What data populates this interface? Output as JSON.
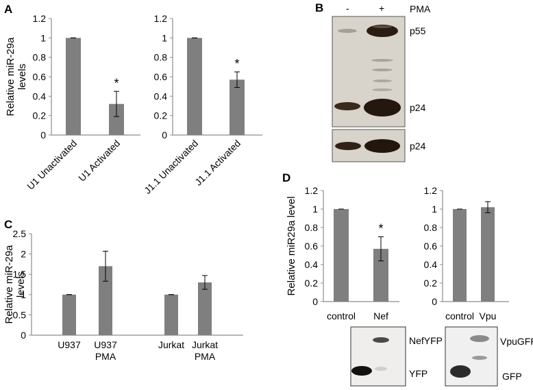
{
  "panel_letters": {
    "A": "A",
    "B": "B",
    "C": "C",
    "D": "D"
  },
  "colors": {
    "bar": "#7f7f7f",
    "axis": "#8c8c8c",
    "blot_dark": "#2b1d14",
    "blot_bg": "#d9d4cc"
  },
  "blot_b": {
    "lanes": [
      "-",
      "+"
    ],
    "treatment": "PMA",
    "bands_top": [
      "p55",
      "p24"
    ],
    "bands_bottom": [
      "p24"
    ]
  },
  "blot_d": {
    "nef_bands": [
      "NefYFP",
      "YFP"
    ],
    "vpu_bands": [
      "VpuGFP",
      "GFP"
    ]
  },
  "chart_data": [
    {
      "id": "A1",
      "type": "bar",
      "ylabel": "Relative miR-29a levels",
      "ylim": [
        0,
        1.2
      ],
      "yticks": [
        "0",
        "0.2",
        "0.4",
        "0.6",
        "0.8",
        "1",
        "1.2"
      ],
      "categories": [
        "U1 Unactivated",
        "U1 Activated"
      ],
      "values": [
        1.0,
        0.32
      ],
      "errors": [
        0.0,
        0.13
      ],
      "annotations": [
        "",
        "*"
      ]
    },
    {
      "id": "A2",
      "type": "bar",
      "ylim": [
        0,
        1.2
      ],
      "yticks": [
        "0",
        "0.2",
        "0.4",
        "0.6",
        "0.8",
        "1",
        "1.2"
      ],
      "categories": [
        "J1.1 Unactivated",
        "J1.1 Activated"
      ],
      "values": [
        1.0,
        0.57
      ],
      "errors": [
        0.0,
        0.08
      ],
      "annotations": [
        "",
        "*"
      ]
    },
    {
      "id": "C",
      "type": "bar",
      "ylabel": "Relative miR-29a levels",
      "ylim": [
        0,
        2.5
      ],
      "yticks": [
        "0",
        "0.5",
        "1",
        "1.5",
        "2",
        "2.5"
      ],
      "categories": [
        "U937",
        "U937 PMA",
        "",
        "Jurkat",
        "Jurkat PMA"
      ],
      "category_lines": [
        [
          "U937"
        ],
        [
          "U937",
          "PMA"
        ],
        [],
        [
          "Jurkat"
        ],
        [
          "Jurkat",
          "PMA"
        ]
      ],
      "values": [
        1.0,
        1.7,
        null,
        1.0,
        1.3
      ],
      "errors": [
        0.0,
        0.37,
        null,
        0.0,
        0.17
      ],
      "annotations": [
        "",
        "",
        "",
        "",
        ""
      ]
    },
    {
      "id": "D1",
      "type": "bar",
      "ylabel": "Relative miR29a level",
      "ylim": [
        0,
        1.2
      ],
      "yticks": [
        "0",
        "0.2",
        "0.4",
        "0.6",
        "0.8",
        "1",
        "1.2"
      ],
      "categories": [
        "control",
        "Nef"
      ],
      "values": [
        1.0,
        0.57
      ],
      "errors": [
        0.0,
        0.13
      ],
      "annotations": [
        "",
        "*"
      ]
    },
    {
      "id": "D2",
      "type": "bar",
      "ylim": [
        0,
        1.2
      ],
      "yticks": [
        "0",
        "0.2",
        "0.4",
        "0.6",
        "0.8",
        "1",
        "1.2"
      ],
      "categories": [
        "control",
        "Vpu"
      ],
      "values": [
        1.0,
        1.02
      ],
      "errors": [
        0.0,
        0.06
      ],
      "annotations": [
        "",
        ""
      ]
    }
  ]
}
